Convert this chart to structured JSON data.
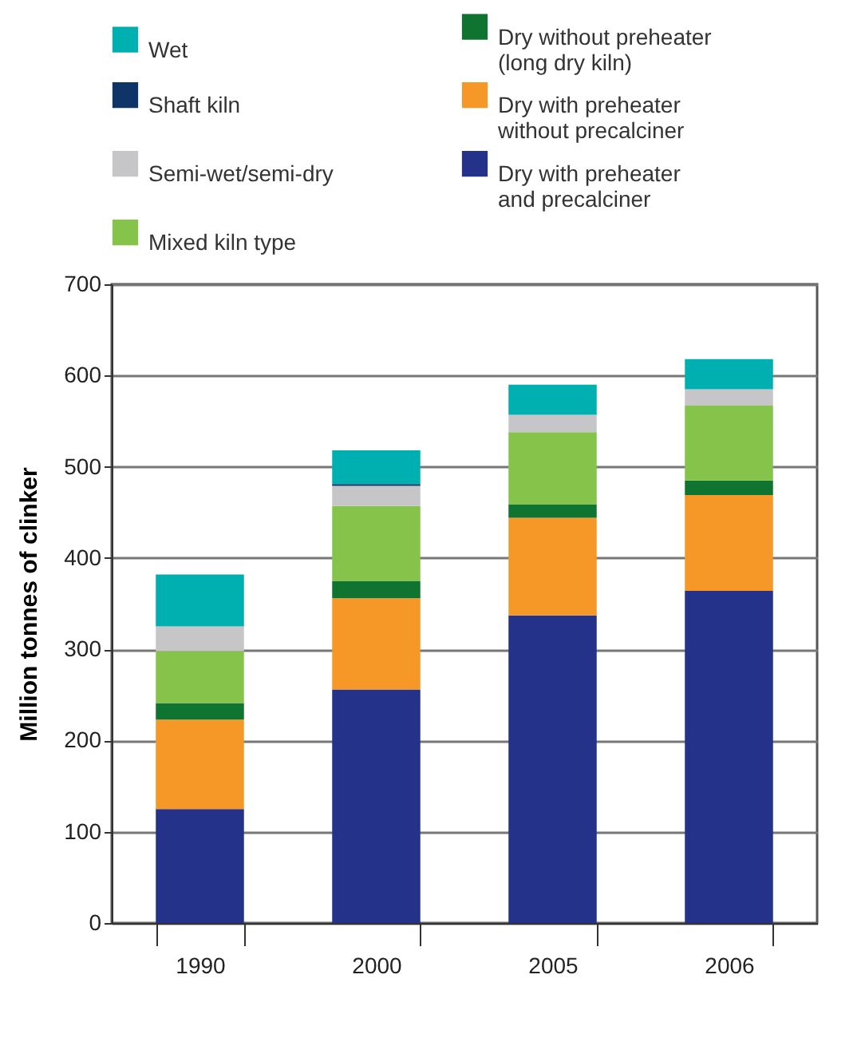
{
  "chart_data": {
    "type": "bar",
    "stacked": true,
    "ylabel": "Million tonnes of clinker",
    "categories": [
      "1990",
      "2000",
      "2005",
      "2006"
    ],
    "series": [
      {
        "name": "Dry with preheater and precalciner",
        "color": "#243289",
        "values": [
          125,
          256,
          337,
          364
        ]
      },
      {
        "name": "Dry with preheater without precalciner",
        "color": "#f59827",
        "values": [
          98,
          100,
          107,
          105
        ]
      },
      {
        "name": "Dry without preheater (long dry kiln)",
        "color": "#107431",
        "values": [
          18,
          19,
          15,
          16
        ]
      },
      {
        "name": "Mixed kiln type",
        "color": "#86c34a",
        "values": [
          57,
          82,
          79,
          82
        ]
      },
      {
        "name": "Semi-wet/semi-dry",
        "color": "#c6c6c8",
        "values": [
          27,
          22,
          19,
          18
        ]
      },
      {
        "name": "Shaft kiln",
        "color": "#0f3468",
        "values": [
          0,
          2,
          0,
          0
        ]
      },
      {
        "name": "Wet",
        "color": "#00b0b0",
        "values": [
          57,
          37,
          33,
          33
        ]
      }
    ],
    "ylim": [
      0,
      700
    ],
    "yticks": [
      0,
      100,
      200,
      300,
      400,
      500,
      600,
      700
    ],
    "grid": "y",
    "legend": "top"
  }
}
